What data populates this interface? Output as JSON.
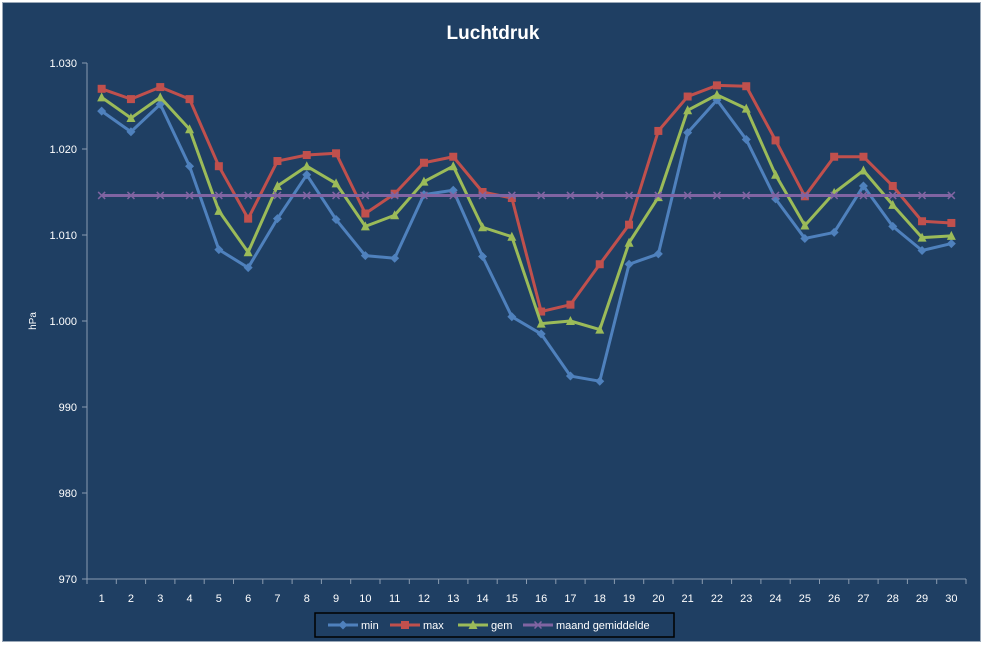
{
  "chart_data": {
    "type": "line",
    "title": "Luchtdruk",
    "xlabel": "",
    "ylabel": "hPa",
    "x": [
      1,
      2,
      3,
      4,
      5,
      6,
      7,
      8,
      9,
      10,
      11,
      12,
      13,
      14,
      15,
      16,
      17,
      18,
      19,
      20,
      21,
      22,
      23,
      24,
      25,
      26,
      27,
      28,
      29,
      30
    ],
    "ylim": [
      970,
      1030
    ],
    "yticks": [
      970,
      980,
      990,
      1000,
      1010,
      1020,
      1030
    ],
    "ytick_labels": [
      "970",
      "980",
      "990",
      "1.000",
      "1.010",
      "1.020",
      "1.030"
    ],
    "grid": false,
    "legend_position": "bottom",
    "series": [
      {
        "name": "min",
        "color": "#4f81bd",
        "marker": "diamond",
        "values": [
          1024.4,
          1022.0,
          1025.2,
          1018.0,
          1008.3,
          1006.2,
          1011.9,
          1017.0,
          1011.8,
          1007.6,
          1007.3,
          1014.7,
          1015.2,
          1007.5,
          1000.5,
          998.5,
          993.6,
          993.0,
          1006.6,
          1007.8,
          1021.9,
          1025.7,
          1021.1,
          1014.2,
          1009.6,
          1010.3,
          1015.7,
          1011.0,
          1008.2,
          1009.0
        ]
      },
      {
        "name": "max",
        "color": "#c0504d",
        "marker": "square",
        "values": [
          1027.0,
          1025.8,
          1027.2,
          1025.8,
          1018.0,
          1011.9,
          1018.6,
          1019.3,
          1019.5,
          1012.5,
          1014.8,
          1018.4,
          1019.1,
          1015.0,
          1014.3,
          1001.1,
          1001.9,
          1006.6,
          1011.2,
          1022.1,
          1026.1,
          1027.4,
          1027.3,
          1021.0,
          1014.5,
          1019.1,
          1019.1,
          1015.7,
          1011.6,
          1011.4
        ]
      },
      {
        "name": "gem",
        "color": "#9bbb59",
        "marker": "triangle",
        "values": [
          1026.0,
          1023.6,
          1026.0,
          1022.3,
          1012.8,
          1008.0,
          1015.7,
          1018.0,
          1016.0,
          1011.0,
          1012.3,
          1016.2,
          1018.0,
          1010.9,
          1009.8,
          999.7,
          1000.0,
          999.0,
          1009.1,
          1014.4,
          1024.5,
          1026.3,
          1024.7,
          1017.0,
          1011.1,
          1014.9,
          1017.5,
          1013.5,
          1009.7,
          1009.9
        ]
      },
      {
        "name": "maand gemiddelde",
        "color": "#8064a2",
        "marker": "x",
        "values": [
          1014.6,
          1014.6,
          1014.6,
          1014.6,
          1014.6,
          1014.6,
          1014.6,
          1014.6,
          1014.6,
          1014.6,
          1014.6,
          1014.6,
          1014.6,
          1014.6,
          1014.6,
          1014.6,
          1014.6,
          1014.6,
          1014.6,
          1014.6,
          1014.6,
          1014.6,
          1014.6,
          1014.6,
          1014.6,
          1014.6,
          1014.6,
          1014.6,
          1014.6,
          1014.6
        ]
      }
    ]
  }
}
